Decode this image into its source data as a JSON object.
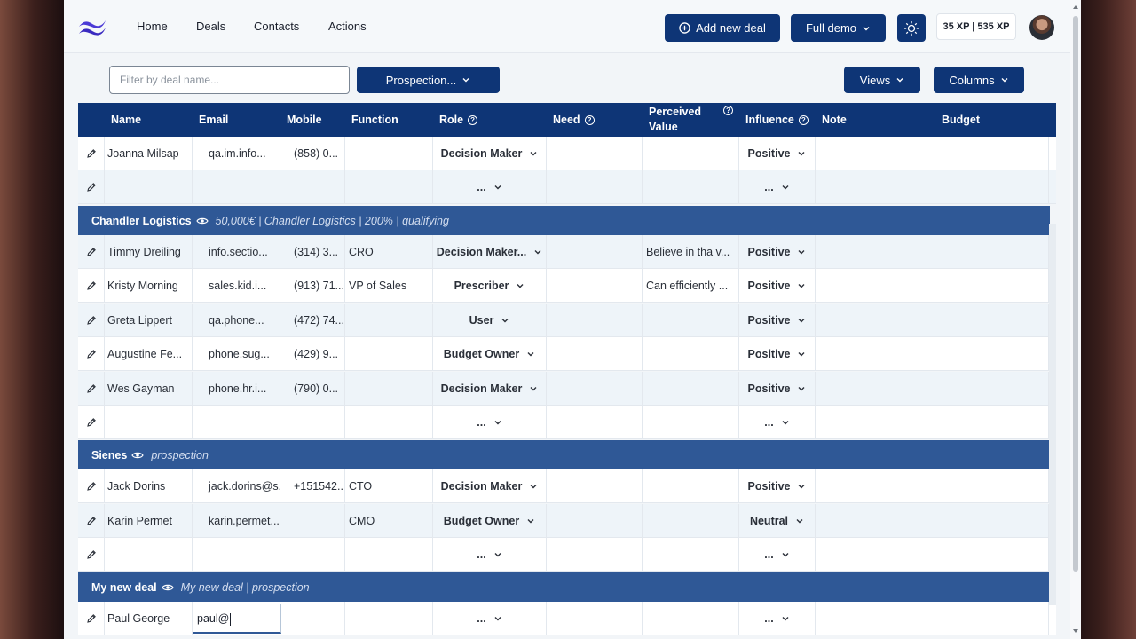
{
  "nav": {
    "links": [
      "Home",
      "Deals",
      "Contacts",
      "Actions"
    ],
    "add_deal": "Add new deal",
    "demo": "Full demo",
    "xp": "35 XP | 535 XP"
  },
  "filters": {
    "search_placeholder": "Filter by deal name...",
    "stage": "Prospection...",
    "views": "Views",
    "columns": "Columns"
  },
  "columns": [
    "Name",
    "Email",
    "Mobile",
    "Function",
    "Role",
    "Need",
    "Perceived Value",
    "Influence",
    "Note",
    "Budget"
  ],
  "perceived_value_lines": [
    "Perceived",
    "Value"
  ],
  "rows_top": [
    {
      "name": "Joanna Milsap",
      "email": "qa.im.info...",
      "mobile": "(858) 0...",
      "function": "",
      "role": "Decision Maker",
      "value": "",
      "influence": "Positive"
    },
    {
      "name": "",
      "email": "",
      "mobile": "",
      "function": "",
      "role": "...",
      "value": "",
      "influence": "..."
    }
  ],
  "groups": [
    {
      "name": "Chandler Logistics",
      "sub": "50,000€ | Chandler Logistics | 200% | qualifying"
    },
    {
      "name": "Sienes",
      "sub": "prospection"
    },
    {
      "name": "My new deal",
      "sub": "My new deal | prospection"
    }
  ],
  "rows_g1": [
    {
      "name": "Timmy Dreiling",
      "email": "info.sectio...",
      "mobile": "(314) 3...",
      "function": "CRO",
      "role": "Decision Maker...",
      "value": "Believe in tha v...",
      "influence": "Positive"
    },
    {
      "name": "Kristy Morning",
      "email": "sales.kid.i...",
      "mobile": "(913) 71...",
      "function": "VP of Sales",
      "role": "Prescriber",
      "value": "Can efficiently ...",
      "influence": "Positive"
    },
    {
      "name": "Greta Lippert",
      "email": "qa.phone...",
      "mobile": "(472) 74...",
      "function": "",
      "role": "User",
      "value": "",
      "influence": "Positive"
    },
    {
      "name": "Augustine Fe...",
      "email": "phone.sug...",
      "mobile": "(429) 9...",
      "function": "",
      "role": "Budget Owner",
      "value": "",
      "influence": "Positive"
    },
    {
      "name": "Wes Gayman",
      "email": "phone.hr.i...",
      "mobile": "(790) 0...",
      "function": "",
      "role": "Decision Maker",
      "value": "",
      "influence": "Positive"
    },
    {
      "name": "",
      "email": "",
      "mobile": "",
      "function": "",
      "role": "...",
      "value": "",
      "influence": "..."
    }
  ],
  "rows_g2": [
    {
      "name": "Jack Dorins",
      "email": "jack.dorins@s...",
      "mobile": "+151542...",
      "function": "CTO",
      "role": "Decision Maker",
      "value": "",
      "influence": "Positive"
    },
    {
      "name": "Karin Permet",
      "email": "karin.permet...",
      "mobile": "",
      "function": "CMO",
      "role": "Budget Owner",
      "value": "",
      "influence": "Neutral"
    },
    {
      "name": "",
      "email": "",
      "mobile": "",
      "function": "",
      "role": "...",
      "value": "",
      "influence": "..."
    }
  ],
  "rows_g3": [
    {
      "name": "Paul George",
      "email_input": "paul@",
      "role": "...",
      "influence": "..."
    }
  ]
}
